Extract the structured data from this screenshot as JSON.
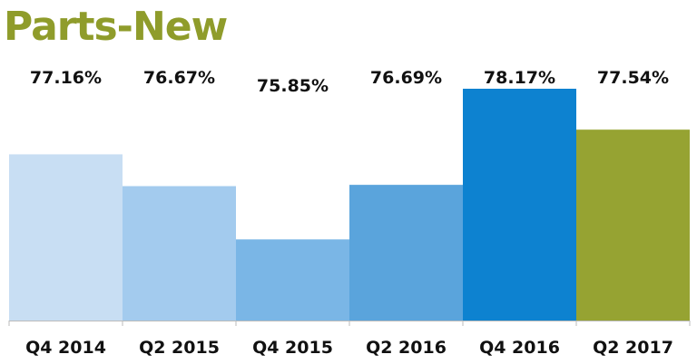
{
  "chart_data": {
    "type": "bar",
    "title": "Parts-New",
    "xlabel": "",
    "ylabel": "",
    "categories": [
      "Q4 2014",
      "Q2 2015",
      "Q4 2015",
      "Q2 2016",
      "Q4 2016",
      "Q2 2017"
    ],
    "values": [
      77.16,
      76.67,
      75.85,
      76.69,
      78.17,
      77.54
    ],
    "value_labels": [
      "77.16%",
      "76.67%",
      "75.85%",
      "76.69%",
      "78.17%",
      "77.54%"
    ],
    "ylim": [
      74.6,
      78.7
    ],
    "grid": false,
    "legend": "none",
    "colors": [
      "#c8def3",
      "#a3cbee",
      "#7ab6e6",
      "#5aa4dc",
      "#0d82d0",
      "#96a332"
    ],
    "title_color": "#8f9c2b",
    "axis_color": "#bbbbbb"
  }
}
